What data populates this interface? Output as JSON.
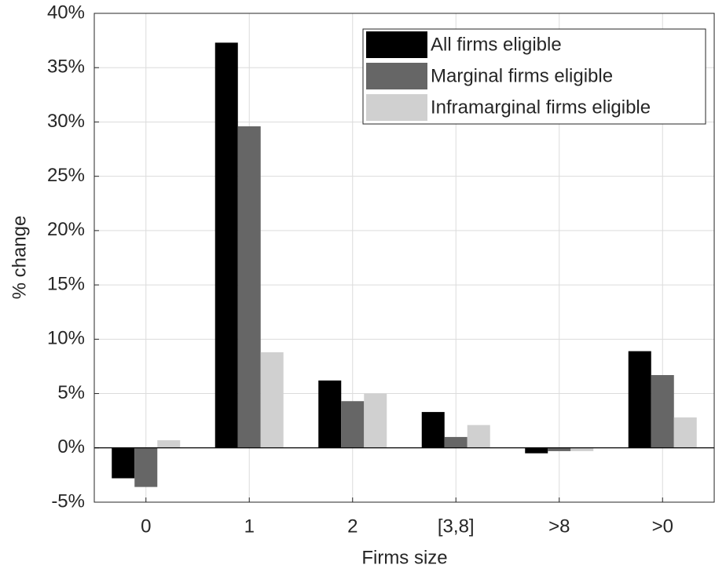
{
  "chart_data": {
    "type": "bar",
    "categories": [
      "0",
      "1",
      "2",
      "[3,8]",
      ">8",
      ">0"
    ],
    "series": [
      {
        "name": "All firms eligible",
        "color": "#000000",
        "values": [
          -2.8,
          37.3,
          6.2,
          3.3,
          -0.5,
          8.9
        ]
      },
      {
        "name": "Marginal firms eligible",
        "color": "#666666",
        "values": [
          -3.6,
          29.6,
          4.3,
          1.0,
          -0.3,
          6.7
        ]
      },
      {
        "name": "Inframarginal firms eligible",
        "color": "#d0d0d0",
        "values": [
          0.7,
          8.8,
          5.0,
          2.1,
          -0.3,
          2.8
        ]
      }
    ],
    "x_label": "Firms size",
    "y_label": "% change",
    "ylim": [
      -5,
      40
    ],
    "yticks": [
      {
        "value": -5,
        "label": "-5%"
      },
      {
        "value": 0,
        "label": "0%"
      },
      {
        "value": 5,
        "label": "5%"
      },
      {
        "value": 10,
        "label": "10%"
      },
      {
        "value": 15,
        "label": "15%"
      },
      {
        "value": 20,
        "label": "20%"
      },
      {
        "value": 25,
        "label": "25%"
      },
      {
        "value": 30,
        "label": "30%"
      },
      {
        "value": 35,
        "label": "35%"
      },
      {
        "value": 40,
        "label": "40%"
      }
    ],
    "grid": true,
    "legend_position": "top-right"
  }
}
